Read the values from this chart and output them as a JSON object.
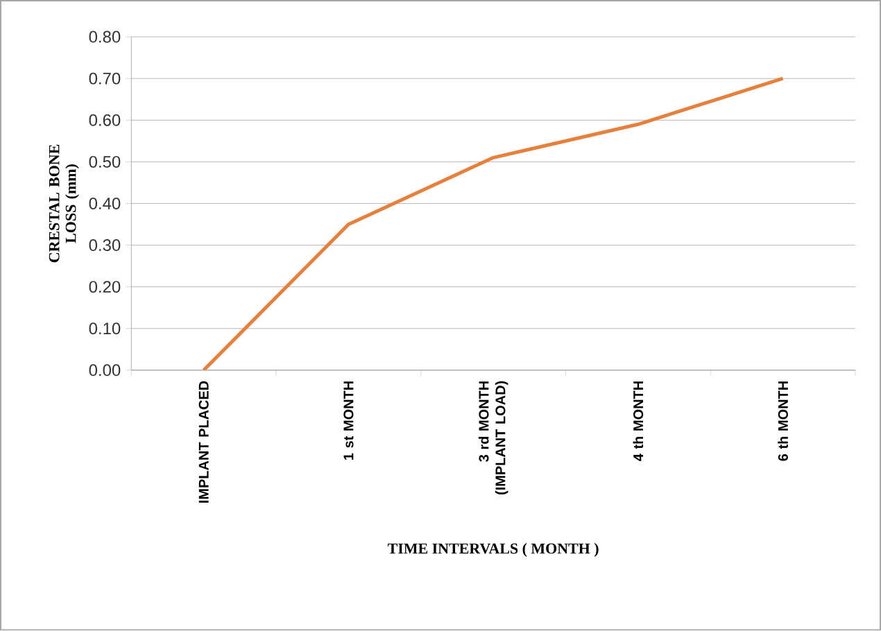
{
  "chart_data": {
    "type": "line",
    "xlabel": "TIME INTERVALS ( MONTH )",
    "ylabel": "CRESTAL BONE LOSS (mm)",
    "categories": [
      "IMPLANT PLACED",
      "1 st  MONTH",
      "3 rd  MONTH (IMPLANT LOAD)",
      "4 th  MONTH",
      "6 th  MONTH"
    ],
    "series": [
      {
        "color": "#e6803c",
        "values": [
          0.0,
          0.35,
          0.51,
          0.59,
          0.7
        ]
      }
    ],
    "ylim": [
      0,
      0.8
    ],
    "yticks": [
      {
        "value": 0,
        "label": "0.00"
      },
      {
        "value": 0.1,
        "label": "0.10"
      },
      {
        "value": 0.2,
        "label": "0.20"
      },
      {
        "value": 0.3,
        "label": "0.30"
      },
      {
        "value": 0.4,
        "label": "0.40"
      },
      {
        "value": 0.5,
        "label": "0.50"
      },
      {
        "value": 0.6,
        "label": "0.60"
      },
      {
        "value": 0.7,
        "label": "0.70"
      },
      {
        "value": 0.8,
        "label": "0.80"
      }
    ],
    "grid": "y",
    "marker": "none",
    "line_style": "solid"
  }
}
